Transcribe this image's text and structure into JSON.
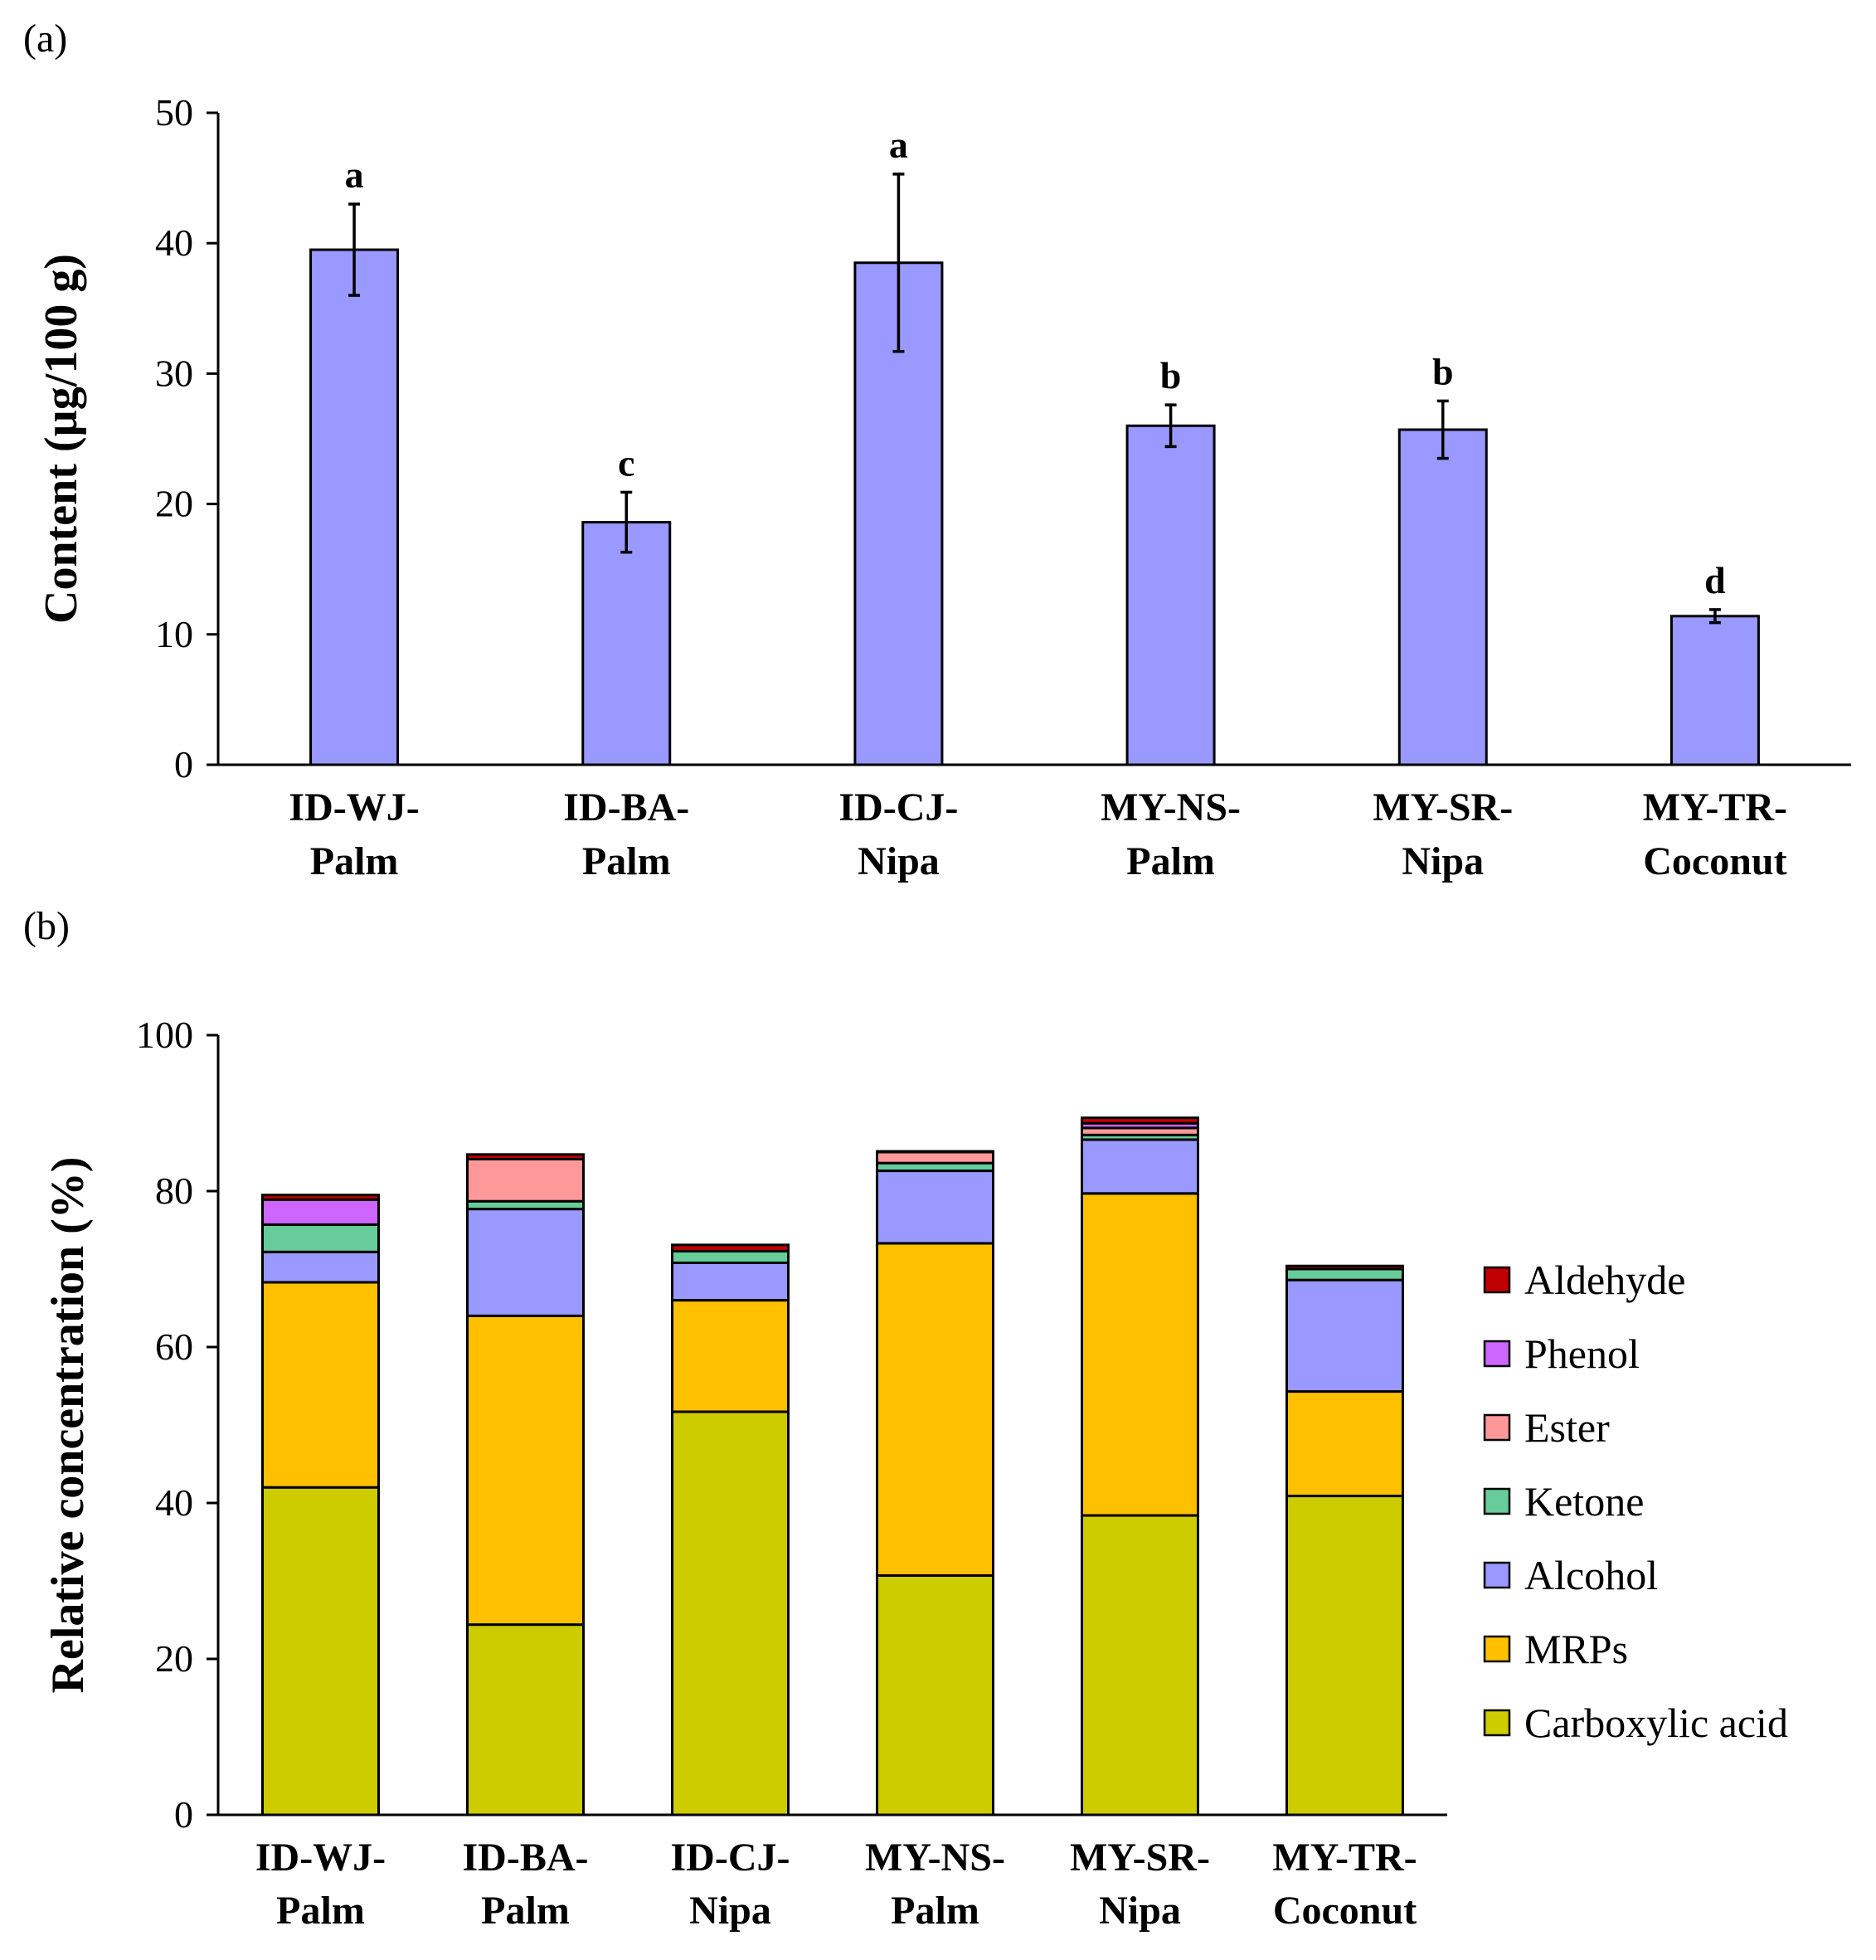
{
  "chart_data": [
    {
      "panel": "(a)",
      "type": "bar",
      "title": "",
      "xlabel": "",
      "ylabel": "Content (µg/100 g)",
      "ylim": [
        0,
        50
      ],
      "yticks": [
        "0",
        "10",
        "20",
        "30",
        "40",
        "50"
      ],
      "categories": [
        [
          "ID-WJ-",
          "Palm"
        ],
        [
          "ID-BA-",
          "Palm"
        ],
        [
          "ID-CJ-",
          "Nipa"
        ],
        [
          "MY-NS-",
          "Palm"
        ],
        [
          "MY-SR-",
          "Nipa"
        ],
        [
          "MY-TR-",
          "Coconut"
        ]
      ],
      "values": [
        39.5,
        18.6,
        38.5,
        26.0,
        25.7,
        11.4
      ],
      "errors": [
        3.5,
        2.3,
        6.8,
        1.6,
        2.2,
        0.5
      ],
      "significance_letters": [
        "a",
        "c",
        "a",
        "b",
        "b",
        "d"
      ],
      "bar_color": "#9999ff"
    },
    {
      "panel": "(b)",
      "type": "bar",
      "stacked": true,
      "title": "",
      "xlabel": "",
      "ylabel": "Relative concentration (%)",
      "ylim": [
        0,
        100
      ],
      "yticks": [
        "0",
        "20",
        "40",
        "60",
        "80",
        "100"
      ],
      "categories": [
        [
          "ID-WJ-",
          "Palm"
        ],
        [
          "ID-BA-",
          "Palm"
        ],
        [
          "ID-CJ-",
          "Nipa"
        ],
        [
          "MY-NS-",
          "Palm"
        ],
        [
          "MY-SR-",
          "Nipa"
        ],
        [
          "MY-TR-",
          "Coconut"
        ]
      ],
      "series": [
        {
          "name": "Carboxylic acid",
          "color": "#cccc00",
          "values": [
            42.0,
            24.4,
            51.7,
            30.7,
            38.4,
            40.9
          ]
        },
        {
          "name": "MRPs",
          "color": "#ffc000",
          "values": [
            26.3,
            39.6,
            14.3,
            42.6,
            41.3,
            13.4
          ]
        },
        {
          "name": "Alcohol",
          "color": "#9999ff",
          "values": [
            3.9,
            13.7,
            4.8,
            9.3,
            6.9,
            14.3
          ]
        },
        {
          "name": "Ketone",
          "color": "#66cc99",
          "values": [
            3.5,
            1.0,
            1.5,
            1.0,
            0.6,
            1.4
          ]
        },
        {
          "name": "Ester",
          "color": "#ff9999",
          "values": [
            0.0,
            5.4,
            0.0,
            1.4,
            0.9,
            0.0
          ]
        },
        {
          "name": "Phenol",
          "color": "#cc66ff",
          "values": [
            3.2,
            0.0,
            0.0,
            0.0,
            0.6,
            0.0
          ]
        },
        {
          "name": "Aldehyde",
          "color": "#c00000",
          "values": [
            0.6,
            0.6,
            0.8,
            0.1,
            0.7,
            0.4
          ]
        }
      ],
      "legend": {
        "placement": "right",
        "order": [
          "Aldehyde",
          "Phenol",
          "Ester",
          "Ketone",
          "Alcohol",
          "MRPs",
          "Carboxylic acid"
        ]
      }
    }
  ]
}
